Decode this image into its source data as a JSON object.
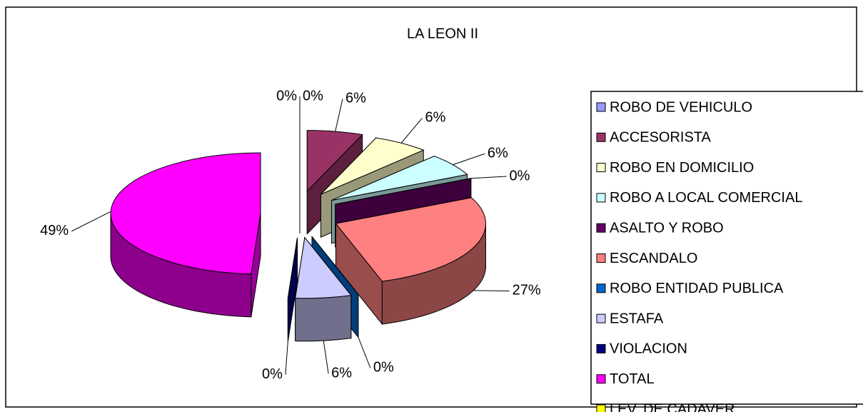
{
  "chart_data": {
    "type": "pie",
    "title": "LA LEON II",
    "categories": [
      "ROBO DE VEHICULO",
      "ACCESORISTA",
      "ROBO EN DOMICILIO",
      "ROBO A LOCAL COMERCIAL",
      "ASALTO Y ROBO",
      "ESCANDALO",
      "ROBO ENTIDAD PUBLICA",
      "ESTAFA",
      "VIOLACION",
      "TOTAL",
      "LEV. DE CADAVER"
    ],
    "values": [
      0,
      6,
      6,
      6,
      0,
      27,
      0,
      6,
      0,
      49,
      0
    ],
    "value_labels": [
      "0%",
      "6%",
      "6%",
      "6%",
      "0%",
      "27%",
      "0%",
      "6%",
      "0%",
      "49%",
      "0%"
    ],
    "colors": [
      "#9999ff",
      "#993366",
      "#ffffcc",
      "#ccffff",
      "#660066",
      "#ff8080",
      "#0066cc",
      "#ccccff",
      "#000080",
      "#ff00ff",
      "#ffff00"
    ],
    "legend": "right"
  }
}
